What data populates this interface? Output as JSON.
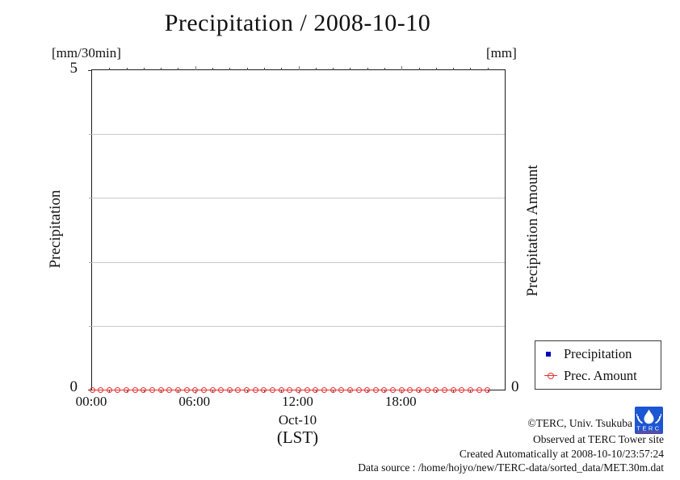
{
  "title": "Precipitation / 2008-10-10",
  "axes": {
    "left_unit": "[mm/30min]",
    "right_unit": "[mm]",
    "left_top_tick": "5",
    "left_bottom_tick": "0",
    "right_bottom_tick": "0",
    "left_label": "Precipitation",
    "right_label": "Precipitation Amount",
    "x_date_label": "Oct-10",
    "x_tz_label": "(LST)"
  },
  "legend": {
    "items": [
      {
        "label": "Precipitation",
        "marker": "blue-filled-square",
        "color": "#0000bf"
      },
      {
        "label": "Prec. Amount",
        "marker": "red-open-circle",
        "color": "#e13434"
      }
    ]
  },
  "footer": {
    "copyright": "©TERC, Univ. Tsukuba",
    "observed": "Observed at TERC Tower site",
    "created": "Created Automatically at 2008-10-10/23:57:24",
    "datasource": "Data source : /home/hojyo/new/TERC-data/sorted_data/MET.30m.dat"
  },
  "logo_text": "TERC",
  "colors": {
    "axis": "#1c1c1c",
    "grid": "#c9c9c9",
    "precipitation_series": "#0000bf",
    "prec_amount_series": "#e13434",
    "logo_blue": "#1d56d2"
  },
  "chart_data": {
    "type": "line",
    "title": "Precipitation / 2008-10-10",
    "x_times": [
      "00:00",
      "00:30",
      "01:00",
      "01:30",
      "02:00",
      "02:30",
      "03:00",
      "03:30",
      "04:00",
      "04:30",
      "05:00",
      "05:30",
      "06:00",
      "06:30",
      "07:00",
      "07:30",
      "08:00",
      "08:30",
      "09:00",
      "09:30",
      "10:00",
      "10:30",
      "11:00",
      "11:30",
      "12:00",
      "12:30",
      "13:00",
      "13:30",
      "14:00",
      "14:30",
      "15:00",
      "15:30",
      "16:00",
      "16:30",
      "17:00",
      "17:30",
      "18:00",
      "18:30",
      "19:00",
      "19:30",
      "20:00",
      "20:30",
      "21:00",
      "21:30",
      "22:00",
      "22:30",
      "23:00"
    ],
    "step_minutes": 30,
    "series": [
      {
        "name": "Precipitation",
        "axis": "left",
        "unit": "mm/30min",
        "marker": "filled-square",
        "color": "#0000bf",
        "values": [
          0,
          0,
          0,
          0,
          0,
          0,
          0,
          0,
          0,
          0,
          0,
          0,
          0,
          0,
          0,
          0,
          0,
          0,
          0,
          0,
          0,
          0,
          0,
          0,
          0,
          0,
          0,
          0,
          0,
          0,
          0,
          0,
          0,
          0,
          0,
          0,
          0,
          0,
          0,
          0,
          0,
          0,
          0,
          0,
          0,
          0,
          0
        ]
      },
      {
        "name": "Prec. Amount",
        "axis": "right",
        "unit": "mm",
        "marker": "open-circle",
        "color": "#e13434",
        "values": [
          0,
          0,
          0,
          0,
          0,
          0,
          0,
          0,
          0,
          0,
          0,
          0,
          0,
          0,
          0,
          0,
          0,
          0,
          0,
          0,
          0,
          0,
          0,
          0,
          0,
          0,
          0,
          0,
          0,
          0,
          0,
          0,
          0,
          0,
          0,
          0,
          0,
          0,
          0,
          0,
          0,
          0,
          0,
          0,
          0,
          0,
          0
        ]
      }
    ],
    "left_axis": {
      "label": "Precipitation",
      "unit": "[mm/30min]",
      "range": [
        0,
        5
      ],
      "labeled_ticks": [
        0,
        5
      ],
      "gridlines": [
        1,
        2,
        3,
        4
      ]
    },
    "right_axis": {
      "label": "Precipitation Amount",
      "unit": "[mm]",
      "labeled_ticks": [
        0
      ]
    },
    "x_axis": {
      "range_hours": [
        0,
        24
      ],
      "major_tick_labels": [
        "00:00",
        "06:00",
        "12:00",
        "18:00"
      ],
      "major_tick_hours": [
        0,
        6,
        12,
        18
      ],
      "minor_tick_interval_hours": 1,
      "date_label": "Oct-10",
      "tz_label": "(LST)"
    },
    "legend_position": "outside-right-bottom",
    "grid": "horizontal-only"
  }
}
